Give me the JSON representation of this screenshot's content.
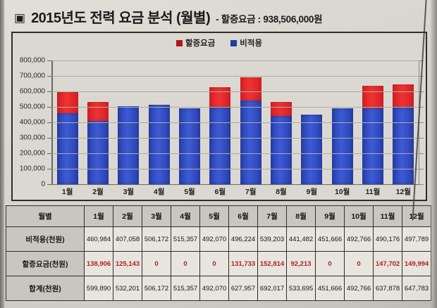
{
  "title": {
    "bullet": "▣",
    "main": "2015년도 전력 요금 분석 (월별)",
    "suffix": "- 할증요금 : 938,506,000원"
  },
  "legend": [
    {
      "label": "할증요금",
      "color": "#b01818"
    },
    {
      "label": "비적용",
      "color": "#1f3f9e"
    }
  ],
  "chart_data": {
    "type": "bar",
    "stacked": true,
    "title": "2015년도 전력 요금 분석 (월별)",
    "categories": [
      "1월",
      "2월",
      "3월",
      "4월",
      "5월",
      "6월",
      "7월",
      "8월",
      "9월",
      "10월",
      "11월",
      "12월"
    ],
    "series": [
      {
        "name": "비적용",
        "color": "base",
        "values": [
          460984,
          407058,
          506172,
          515357,
          492070,
          496224,
          539203,
          441482,
          451666,
          492766,
          490176,
          497789
        ]
      },
      {
        "name": "할증요금",
        "color": "top",
        "values": [
          138906,
          125143,
          0,
          0,
          0,
          131733,
          152814,
          92213,
          0,
          0,
          147702,
          149994
        ]
      }
    ],
    "xlabel": "",
    "ylabel": "",
    "ylim": [
      0,
      800000
    ],
    "ytick_step": 100000,
    "ytick_labels": [
      "0",
      "100,000",
      "200,000",
      "300,000",
      "400,000",
      "500,000",
      "600,000",
      "700,000",
      "800,000"
    ],
    "grid": true,
    "legend_position": "top-center"
  },
  "table": {
    "header": [
      "월별",
      "1월",
      "2월",
      "3월",
      "4월",
      "5월",
      "6월",
      "7월",
      "8월",
      "9월",
      "10월",
      "11월",
      "12월"
    ],
    "rows": [
      {
        "label": "비적용(천원)",
        "style": "black",
        "values": [
          "460,984",
          "407,058",
          "506,172",
          "515,357",
          "492,070",
          "496,224",
          "539,203",
          "441,482",
          "451,666",
          "492,766",
          "490,176",
          "497,789"
        ]
      },
      {
        "label": "할증요금(천원)",
        "style": "red",
        "values": [
          "138,906",
          "125,143",
          "0",
          "0",
          "0",
          "131,733",
          "152,814",
          "92,213",
          "0",
          "0",
          "147,702",
          "149,994"
        ]
      },
      {
        "label": "합계(천원)",
        "style": "black",
        "values": [
          "599,890",
          "532,201",
          "506,172",
          "515,357",
          "492,070",
          "627,957",
          "692,017",
          "533,695",
          "451,666",
          "492,766",
          "637,878",
          "647,783"
        ]
      }
    ]
  }
}
